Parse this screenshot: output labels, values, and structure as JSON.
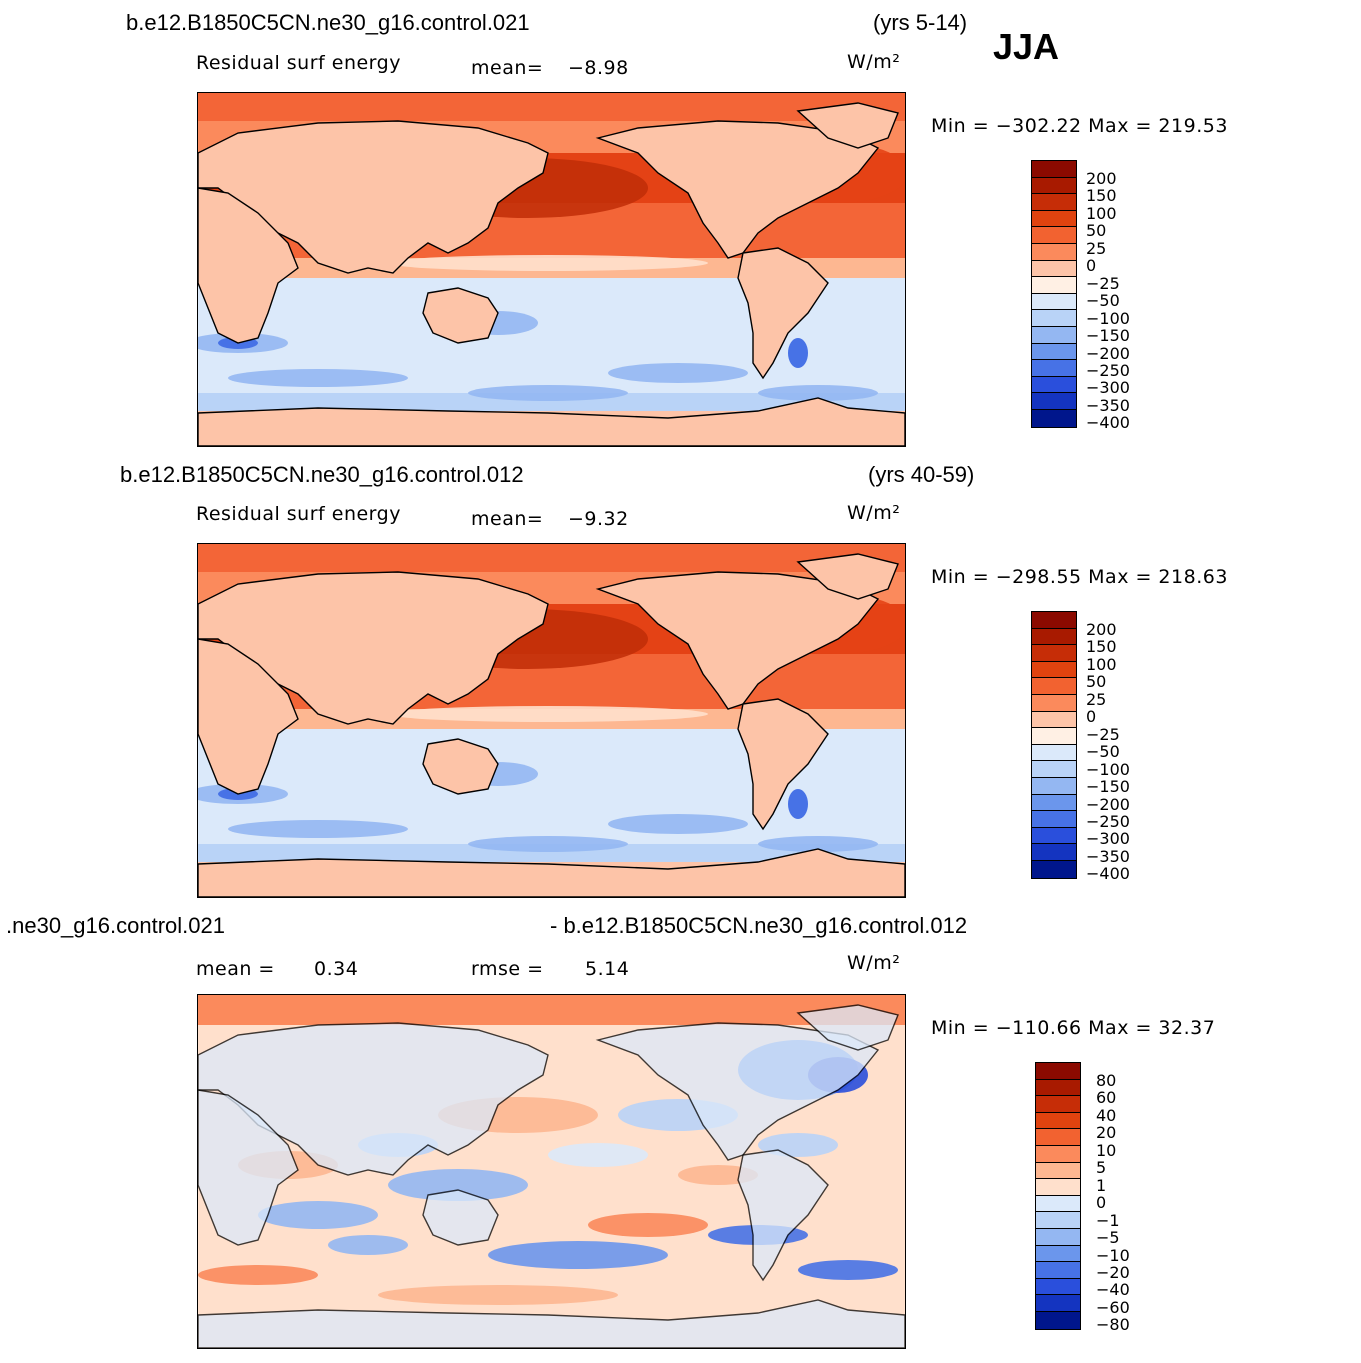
{
  "season": "JJA",
  "colors": {
    "land": "#fdc4a8",
    "coast": "#000000",
    "warm": [
      "#ffe0cc",
      "#fdb791",
      "#fb8a5c",
      "#f36537",
      "#e44215",
      "#c02d07",
      "#8b0a00"
    ],
    "cool": [
      "#dbe9fa",
      "#b9d3f7",
      "#94b7f2",
      "#6b96ec",
      "#4772e6",
      "#2a4fdc",
      "#1434c0",
      "#00168c"
    ]
  },
  "panels": [
    {
      "title": "b.e12.B1850C5CN.ne30_g16.control.021",
      "years": "(yrs 5-14)",
      "field": "Residual surf energy",
      "stat_label": "mean=",
      "stat_value": "−8.98",
      "units": "W/m²",
      "min_max": "Min = −302.22 Max = 219.53",
      "levels": [
        "200",
        "150",
        "100",
        "50",
        "25",
        "0",
        "−25",
        "−50",
        "−100",
        "−150",
        "−200",
        "−250",
        "−300",
        "−350",
        "−400"
      ],
      "colorbar": [
        "#8b0a00",
        "#a81a00",
        "#c62d07",
        "#e0430f",
        "#f26230",
        "#fb8a5c",
        "#fdc4a8",
        "#fff0e4",
        "#dbe9fa",
        "#b9d3f7",
        "#94b7f2",
        "#6b96ec",
        "#4772e6",
        "#2a4fdc",
        "#1434c0",
        "#00168c"
      ]
    },
    {
      "title": "b.e12.B1850C5CN.ne30_g16.control.012",
      "years": "(yrs 40-59)",
      "field": "Residual surf energy",
      "stat_label": "mean=",
      "stat_value": "−9.32",
      "units": "W/m²",
      "min_max": "Min = −298.55 Max = 218.63",
      "levels": [
        "200",
        "150",
        "100",
        "50",
        "25",
        "0",
        "−25",
        "−50",
        "−100",
        "−150",
        "−200",
        "−250",
        "−300",
        "−350",
        "−400"
      ],
      "colorbar": [
        "#8b0a00",
        "#a81a00",
        "#c62d07",
        "#e0430f",
        "#f26230",
        "#fb8a5c",
        "#fdc4a8",
        "#fff0e4",
        "#dbe9fa",
        "#b9d3f7",
        "#94b7f2",
        "#6b96ec",
        "#4772e6",
        "#2a4fdc",
        "#1434c0",
        "#00168c"
      ]
    },
    {
      "title_left": ".ne30_g16.control.021",
      "title_right": "- b.e12.B1850C5CN.ne30_g16.control.012",
      "stat1_label": "mean =",
      "stat1_value": "0.34",
      "stat2_label": "rmse =",
      "stat2_value": "5.14",
      "units": "W/m²",
      "min_max": "Min = −110.66 Max =  32.37",
      "levels": [
        "80",
        "60",
        "40",
        "20",
        "10",
        "5",
        "1",
        "0",
        "−1",
        "−5",
        "−10",
        "−20",
        "−40",
        "−60",
        "−80"
      ],
      "colorbar": [
        "#8b0a00",
        "#a81a00",
        "#c62d07",
        "#e0430f",
        "#f26230",
        "#fb8a5c",
        "#fdb791",
        "#ffe0cc",
        "#dbe9fa",
        "#b9d3f7",
        "#94b7f2",
        "#6b96ec",
        "#4772e6",
        "#2a4fdc",
        "#1434c0",
        "#00168c"
      ]
    }
  ]
}
